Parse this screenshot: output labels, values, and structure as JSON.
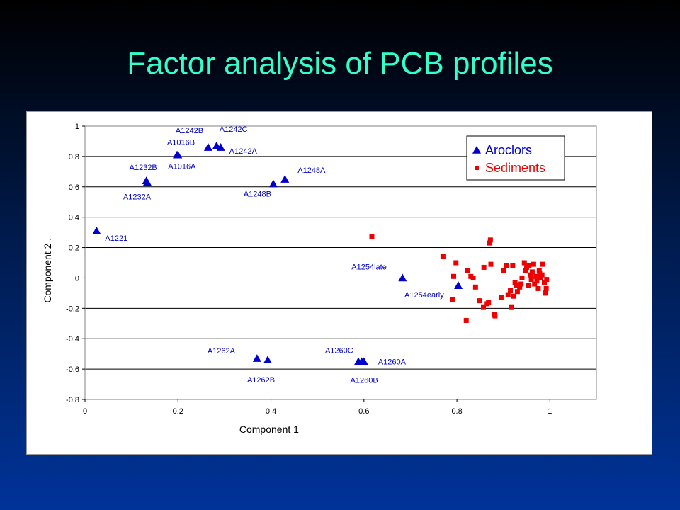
{
  "slide": {
    "title": "Factor analysis of PCB profiles"
  },
  "colors": {
    "title": "#33ffcc",
    "aroclors": "#0000cc",
    "sediments": "#ee0000"
  },
  "chart_data": {
    "type": "scatter",
    "xlabel": "Component 1",
    "ylabel": "Component 2 .",
    "xlim": [
      0,
      1.1
    ],
    "ylim": [
      -0.8,
      1
    ],
    "xticks": [
      0,
      0.2,
      0.4,
      0.6,
      0.8,
      1
    ],
    "yticks": [
      -0.8,
      -0.6,
      -0.4,
      -0.2,
      0,
      0.2,
      0.4,
      0.6,
      0.8,
      1
    ],
    "grid": "horizontal major gridlines",
    "legend_position": "top-right",
    "series": [
      {
        "name": "Aroclors",
        "marker": "triangle",
        "points": [
          {
            "x": 0.025,
            "y": 0.31,
            "label": "A1221"
          },
          {
            "x": 0.132,
            "y": 0.64,
            "label": "A1232B"
          },
          {
            "x": 0.134,
            "y": 0.63,
            "label": "A1232A"
          },
          {
            "x": 0.198,
            "y": 0.81,
            "label": "A1016B"
          },
          {
            "x": 0.2,
            "y": 0.81,
            "label": "A1016A"
          },
          {
            "x": 0.265,
            "y": 0.86,
            "label": "A1242B"
          },
          {
            "x": 0.283,
            "y": 0.87,
            "label": "A1242C"
          },
          {
            "x": 0.292,
            "y": 0.86,
            "label": "A1242A"
          },
          {
            "x": 0.405,
            "y": 0.62,
            "label": "A1248B"
          },
          {
            "x": 0.43,
            "y": 0.65,
            "label": "A1248A"
          },
          {
            "x": 0.37,
            "y": -0.53,
            "label": "A1262A"
          },
          {
            "x": 0.393,
            "y": -0.54,
            "label": "A1262B"
          },
          {
            "x": 0.588,
            "y": -0.55,
            "label": "A1260C"
          },
          {
            "x": 0.6,
            "y": -0.55,
            "label": "A1260A"
          },
          {
            "x": 0.595,
            "y": -0.55,
            "label": "A1260B"
          },
          {
            "x": 0.683,
            "y": 0.0,
            "label": "A1254late"
          },
          {
            "x": 0.803,
            "y": -0.05,
            "label": "A1254early"
          }
        ]
      },
      {
        "name": "Sediments",
        "marker": "square",
        "points": [
          {
            "x": 0.617,
            "y": 0.27
          },
          {
            "x": 0.77,
            "y": 0.14
          },
          {
            "x": 0.793,
            "y": 0.01
          },
          {
            "x": 0.798,
            "y": 0.1
          },
          {
            "x": 0.79,
            "y": -0.14
          },
          {
            "x": 0.823,
            "y": 0.05
          },
          {
            "x": 0.83,
            "y": 0.01
          },
          {
            "x": 0.835,
            "y": 0.0
          },
          {
            "x": 0.84,
            "y": -0.06
          },
          {
            "x": 0.848,
            "y": -0.15
          },
          {
            "x": 0.857,
            "y": -0.19
          },
          {
            "x": 0.858,
            "y": 0.07
          },
          {
            "x": 0.865,
            "y": -0.17
          },
          {
            "x": 0.868,
            "y": -0.16
          },
          {
            "x": 0.87,
            "y": 0.23
          },
          {
            "x": 0.872,
            "y": 0.25
          },
          {
            "x": 0.873,
            "y": 0.09
          },
          {
            "x": 0.82,
            "y": -0.28
          },
          {
            "x": 0.88,
            "y": -0.24
          },
          {
            "x": 0.882,
            "y": -0.25
          },
          {
            "x": 0.895,
            "y": -0.13
          },
          {
            "x": 0.9,
            "y": 0.05
          },
          {
            "x": 0.907,
            "y": 0.08
          },
          {
            "x": 0.91,
            "y": -0.11
          },
          {
            "x": 0.915,
            "y": -0.08
          },
          {
            "x": 0.918,
            "y": -0.19
          },
          {
            "x": 0.92,
            "y": 0.08
          },
          {
            "x": 0.922,
            "y": -0.12
          },
          {
            "x": 0.925,
            "y": -0.03
          },
          {
            "x": 0.928,
            "y": -0.05
          },
          {
            "x": 0.93,
            "y": -0.09
          },
          {
            "x": 0.935,
            "y": -0.06
          },
          {
            "x": 0.938,
            "y": -0.04
          },
          {
            "x": 0.945,
            "y": 0.1
          },
          {
            "x": 0.948,
            "y": 0.05
          },
          {
            "x": 0.95,
            "y": 0.07
          },
          {
            "x": 0.955,
            "y": 0.08
          },
          {
            "x": 0.958,
            "y": 0.02
          },
          {
            "x": 0.96,
            "y": -0.01
          },
          {
            "x": 0.962,
            "y": 0.04
          },
          {
            "x": 0.965,
            "y": 0.09
          },
          {
            "x": 0.967,
            "y": -0.04
          },
          {
            "x": 0.97,
            "y": 0.01
          },
          {
            "x": 0.972,
            "y": -0.02
          },
          {
            "x": 0.975,
            "y": -0.07
          },
          {
            "x": 0.977,
            "y": 0.05
          },
          {
            "x": 0.978,
            "y": 0.03
          },
          {
            "x": 0.98,
            "y": 0.0
          },
          {
            "x": 0.983,
            "y": 0.02
          },
          {
            "x": 0.985,
            "y": 0.09
          },
          {
            "x": 0.988,
            "y": -0.03
          },
          {
            "x": 0.99,
            "y": -0.1
          },
          {
            "x": 0.992,
            "y": -0.07
          },
          {
            "x": 0.993,
            "y": -0.01
          },
          {
            "x": 0.94,
            "y": 0.0
          },
          {
            "x": 0.953,
            "y": -0.05
          }
        ]
      }
    ]
  }
}
